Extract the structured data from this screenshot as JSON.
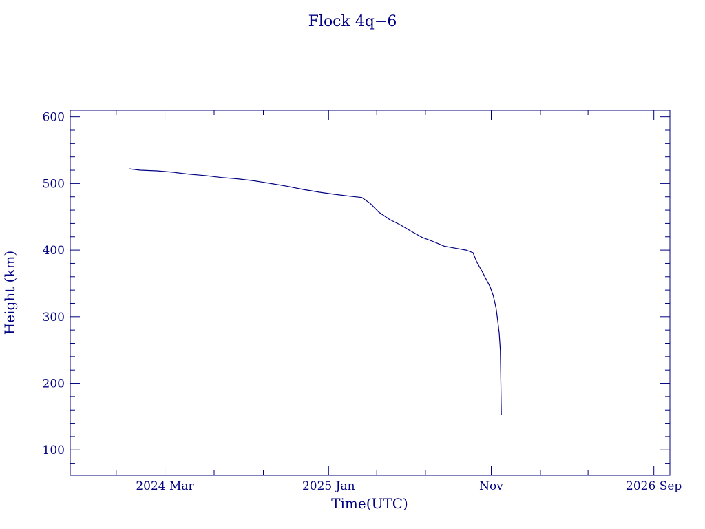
{
  "chart_data": {
    "type": "line",
    "title": "Flock 4q−6",
    "xlabel": "Time(UTC)",
    "ylabel": "Height (km)",
    "x_axis": "date",
    "xlim": [
      "2023-09-06",
      "2026-10-01"
    ],
    "ylim": [
      62,
      610
    ],
    "x_ticks": [
      {
        "date": "2024-03-01",
        "label": "2024 Mar"
      },
      {
        "date": "2025-01-01",
        "label": "2025 Jan"
      },
      {
        "date": "2025-11-01",
        "label": "Nov"
      },
      {
        "date": "2026-09-01",
        "label": "2026 Sep"
      }
    ],
    "x_minor_ticks": [
      "2023-09-01",
      "2023-12-01",
      "2024-06-01",
      "2024-09-01",
      "2025-04-01",
      "2025-07-01",
      "2026-02-01",
      "2026-05-01"
    ],
    "y_ticks": [
      100,
      200,
      300,
      400,
      500,
      600
    ],
    "y_minor_step": 20,
    "grid": false,
    "color": "#000080",
    "series": [
      {
        "x": [
          "2023-12-26",
          "2024-01-15",
          "2024-02-15",
          "2024-03-15",
          "2024-04-15",
          "2024-05-15",
          "2024-06-15",
          "2024-07-15",
          "2024-08-15",
          "2024-09-15",
          "2024-10-15",
          "2024-11-15",
          "2024-12-15",
          "2025-01-10",
          "2025-02-10",
          "2025-03-04",
          "2025-03-20",
          "2025-04-05",
          "2025-04-25",
          "2025-05-15",
          "2025-06-05",
          "2025-06-25",
          "2025-07-15",
          "2025-08-05",
          "2025-08-25",
          "2025-09-15",
          "2025-09-28",
          "2025-10-05",
          "2025-10-15",
          "2025-10-22",
          "2025-10-30",
          "2025-11-05",
          "2025-11-10",
          "2025-11-13",
          "2025-11-16",
          "2025-11-18",
          "2025-11-19",
          "2025-11-20"
        ],
        "y": [
          522,
          520,
          519,
          517,
          514,
          512,
          509,
          507,
          504,
          500,
          496,
          491,
          487,
          484,
          481,
          479,
          470,
          457,
          446,
          438,
          428,
          419,
          413,
          406,
          403,
          400,
          396,
          382,
          368,
          357,
          345,
          331,
          313,
          295,
          275,
          250,
          200,
          152
        ]
      }
    ]
  }
}
